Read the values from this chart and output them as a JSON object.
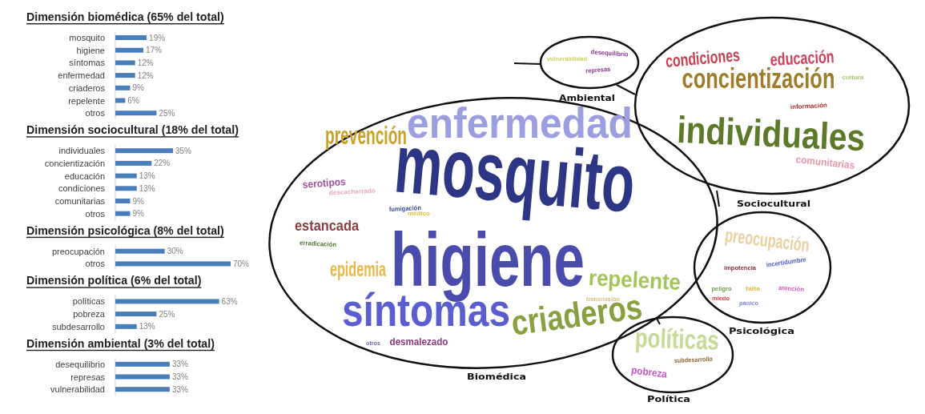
{
  "chart_data": [
    {
      "type": "bar",
      "orientation": "horizontal",
      "title": "Dimensión biomédica (65% del total)",
      "categories": [
        "mosquito",
        "higiene",
        "síntomas",
        "enfermedad",
        "criaderos",
        "repelente",
        "otros"
      ],
      "values": [
        19,
        17,
        12,
        12,
        9,
        6,
        25
      ],
      "value_labels": [
        "19%",
        "17%",
        "12%",
        "12%",
        "9%",
        "6%",
        "25%"
      ],
      "color": "#4a7ebb",
      "tick_labels": "y"
    },
    {
      "type": "bar",
      "orientation": "horizontal",
      "title": "Dimensión sociocultural (18% del total)",
      "categories": [
        "individuales",
        "concientización",
        "educación",
        "condiciones",
        "comunitarias",
        "otros"
      ],
      "values": [
        35,
        22,
        13,
        13,
        9,
        9
      ],
      "value_labels": [
        "35%",
        "22%",
        "13%",
        "13%",
        "9%",
        "9%"
      ],
      "color": "#4a7ebb",
      "tick_labels": "y"
    },
    {
      "type": "bar",
      "orientation": "horizontal",
      "title": "Dimensión psicológica (8% del total)",
      "categories": [
        "preocupación",
        "otros"
      ],
      "values": [
        30,
        70
      ],
      "value_labels": [
        "30%",
        "70%"
      ],
      "color": "#4a7ebb",
      "tick_labels": "y"
    },
    {
      "type": "bar",
      "orientation": "horizontal",
      "title": "Dimensión política (6% del total)",
      "categories": [
        "políticas",
        "pobreza",
        "subdesarrollo"
      ],
      "values": [
        63,
        25,
        13
      ],
      "value_labels": [
        "63%",
        "25%",
        "13%"
      ],
      "color": "#4a7ebb",
      "tick_labels": "y"
    },
    {
      "type": "bar",
      "orientation": "horizontal",
      "title": "Dimensión ambiental (3% del total)",
      "categories": [
        "desequilibrio",
        "represas",
        "vulnerabilidad"
      ],
      "values": [
        33,
        33,
        33
      ],
      "value_labels": [
        "33%",
        "33%",
        "33%"
      ],
      "color": "#4a7ebb",
      "tick_labels": "y"
    },
    {
      "type": "other",
      "annotations": [
        "enfermedad",
        "mosquito",
        "prevención",
        "serotipos",
        "descacharrado",
        "fumigación",
        "médico",
        "estancada",
        "erradicación",
        "epidemia",
        "higiene",
        "síntomas",
        "otros",
        "desmalezado",
        "criaderos",
        "repelente",
        "transmisión",
        "Biomédica",
        "condiciones",
        "educación",
        "concientización",
        "cultura",
        "información",
        "individuales",
        "comunitarias",
        "Sociocultural",
        "vulnerabilidad",
        "desequilibrio",
        "represas",
        "Ambiental",
        "preocupación",
        "incertidumbre",
        "impotencia",
        "peligro",
        "falta",
        "atención",
        "miedo",
        "pánico",
        "Psicológica",
        "políticas",
        "subdesarrollo",
        "pobreza",
        "Política"
      ]
    }
  ]
}
